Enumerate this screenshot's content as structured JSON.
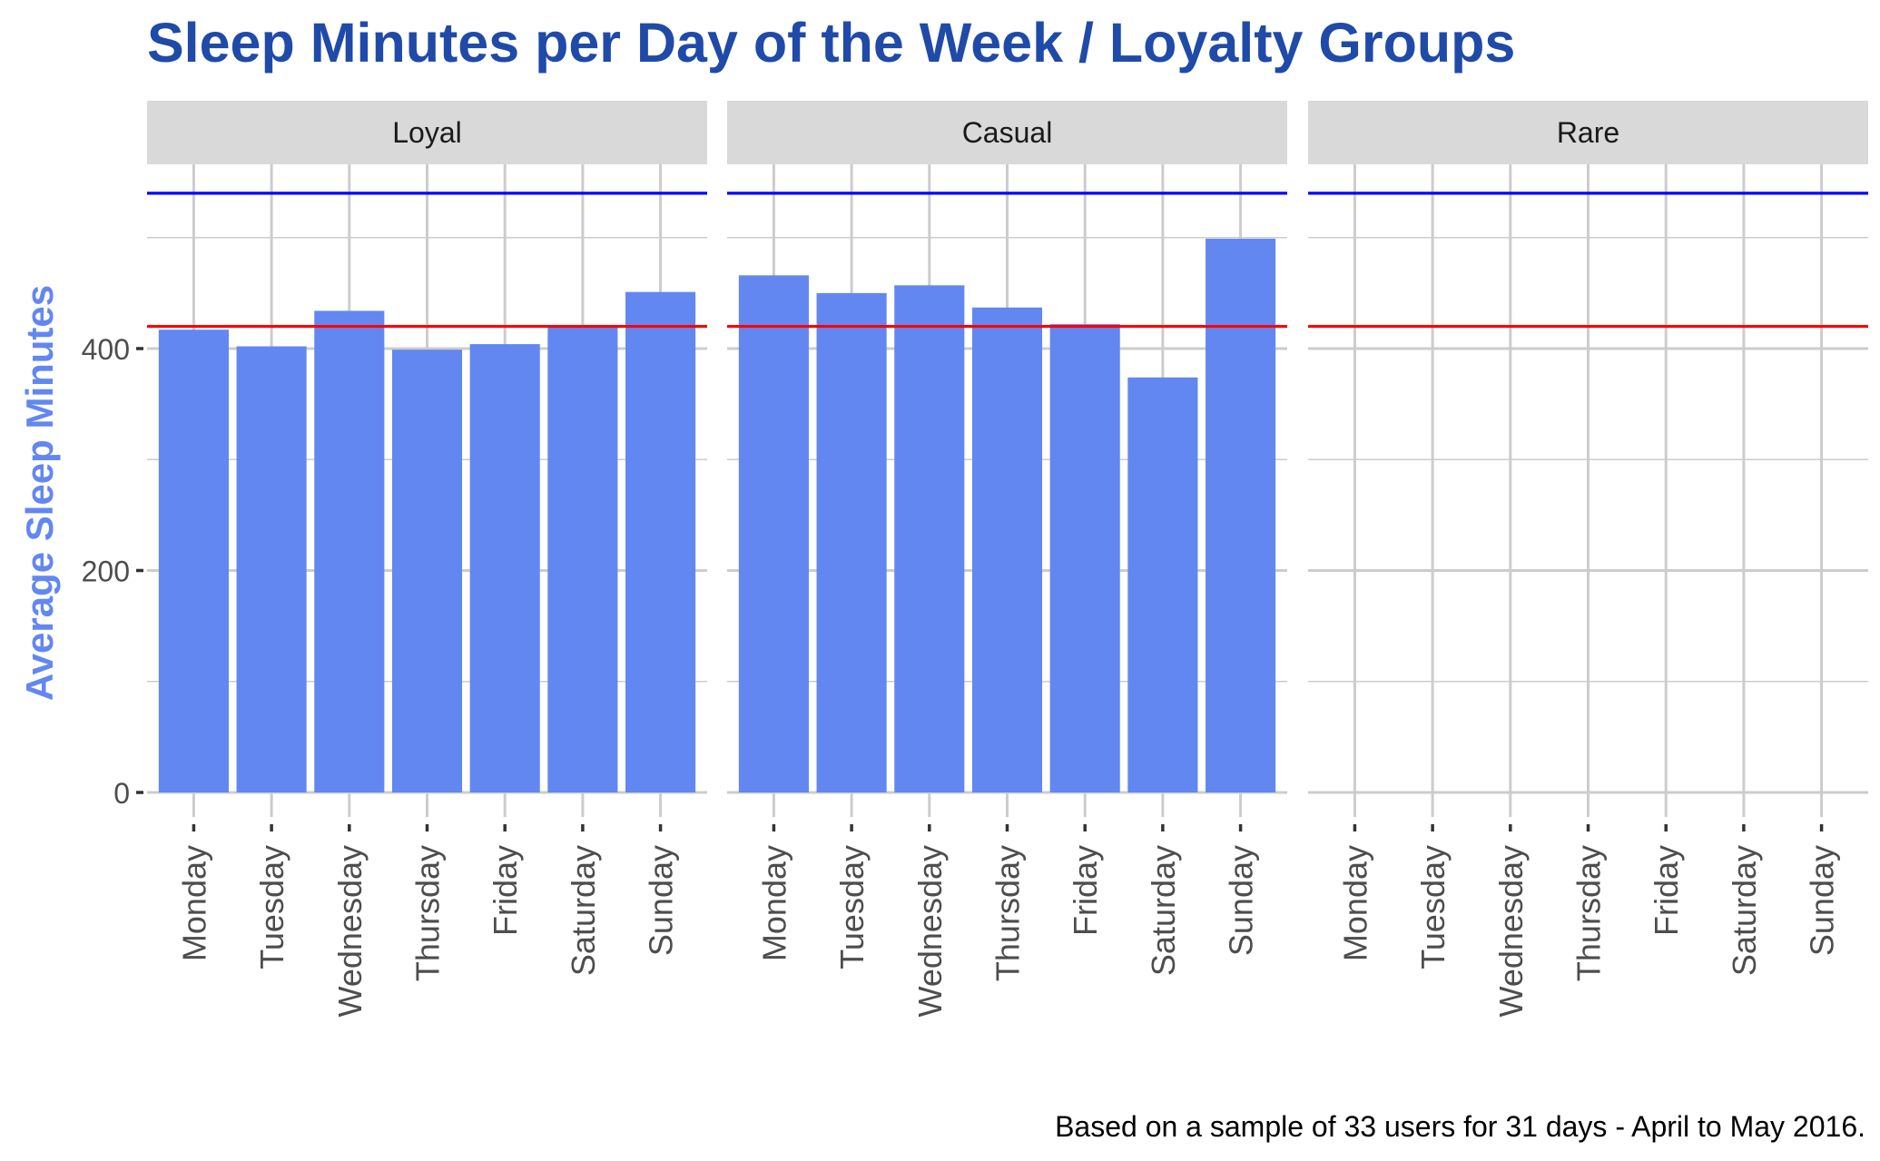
{
  "chart_data": {
    "type": "bar",
    "title": "Sleep Minutes per Day of the Week / Loyalty Groups",
    "ylabel": "Average Sleep Minutes",
    "xlabel": "",
    "caption": "Based on a sample of 33 users for 31 days - April to May 2016.",
    "categories": [
      "Monday",
      "Tuesday",
      "Wednesday",
      "Thursday",
      "Friday",
      "Saturday",
      "Sunday"
    ],
    "ylim": [
      0,
      560
    ],
    "yticks": [
      0,
      200,
      400
    ],
    "ytick_labels": [
      "0",
      "200",
      "400"
    ],
    "minor_yticks": [
      100,
      300,
      500
    ],
    "grid": true,
    "facets": [
      {
        "name": "Loyal",
        "values": [
          417,
          402,
          434,
          399,
          404,
          420,
          451
        ]
      },
      {
        "name": "Casual",
        "values": [
          466,
          450,
          457,
          437,
          422,
          374,
          499
        ]
      },
      {
        "name": "Rare",
        "values": []
      }
    ],
    "reference_lines": [
      {
        "value": 540,
        "color": "#0000ff"
      },
      {
        "value": 420,
        "color": "#ff0000"
      }
    ],
    "colors": {
      "bar": "#6387f1",
      "title": "#1f4aa8",
      "ylabel": "#6387f1",
      "strip": "#d9d9d9",
      "grid": "#cccccc"
    }
  }
}
